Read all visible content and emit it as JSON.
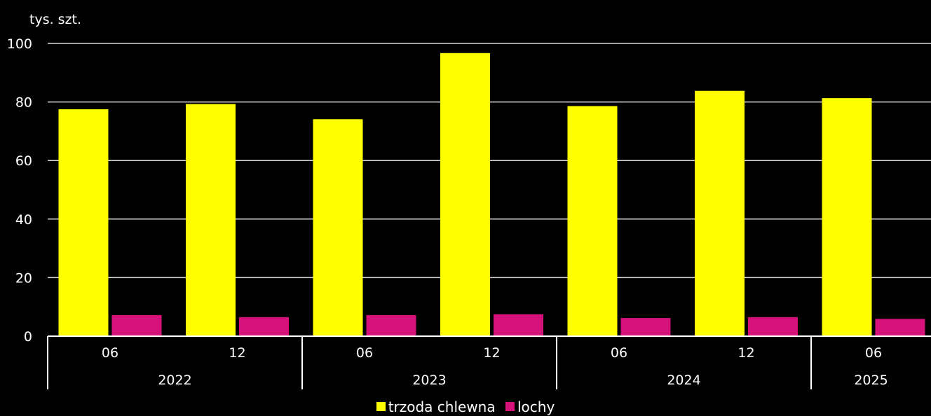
{
  "chart_data": {
    "type": "bar",
    "ylabel": "tys. szt.",
    "ylim": [
      0,
      100
    ],
    "yticks": [
      0,
      20,
      40,
      60,
      80,
      100
    ],
    "grid": true,
    "legend_position": "bottom",
    "categories": [
      "06",
      "12",
      "06",
      "12",
      "06",
      "12",
      "06"
    ],
    "groups": [
      {
        "label": "2022",
        "count": 2
      },
      {
        "label": "2023",
        "count": 2
      },
      {
        "label": "2024",
        "count": 2
      },
      {
        "label": "2025",
        "count": 1
      }
    ],
    "series": [
      {
        "name": "trzoda chlewna",
        "color": "#ffff00",
        "values": [
          77.5,
          79.3,
          74.1,
          96.7,
          78.6,
          83.8,
          81.3
        ]
      },
      {
        "name": "lochy",
        "color": "#d6127a",
        "values": [
          7.2,
          6.5,
          7.2,
          7.5,
          6.2,
          6.5,
          5.9
        ]
      }
    ]
  }
}
